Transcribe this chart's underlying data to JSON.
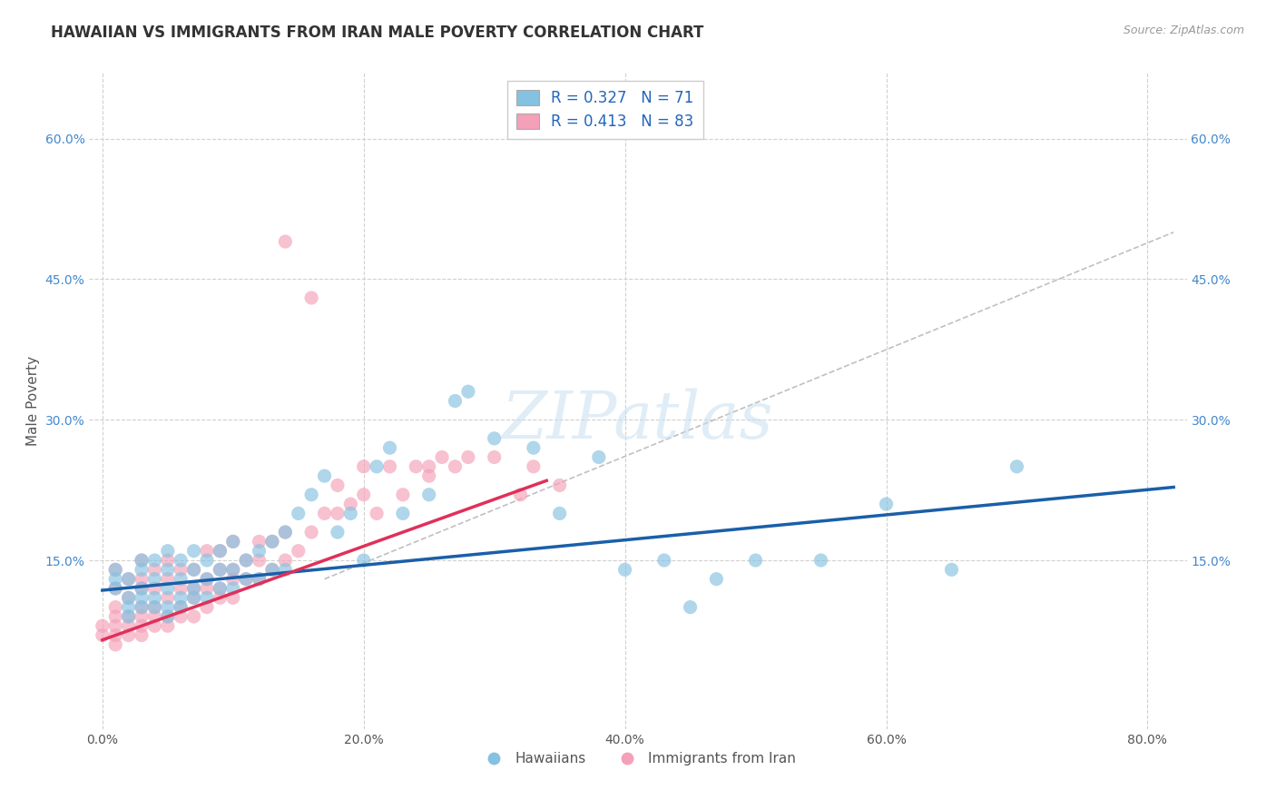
{
  "title": "HAWAIIAN VS IMMIGRANTS FROM IRAN MALE POVERTY CORRELATION CHART",
  "source": "Source: ZipAtlas.com",
  "ylabel_label": "Male Poverty",
  "x_tick_labels": [
    "0.0%",
    "20.0%",
    "40.0%",
    "60.0%",
    "80.0%"
  ],
  "x_tick_values": [
    0.0,
    0.2,
    0.4,
    0.6,
    0.8
  ],
  "y_tick_labels": [
    "15.0%",
    "30.0%",
    "45.0%",
    "60.0%"
  ],
  "y_tick_values": [
    0.15,
    0.3,
    0.45,
    0.6
  ],
  "xlim": [
    -0.01,
    0.83
  ],
  "ylim": [
    -0.03,
    0.67
  ],
  "hawaiian_color": "#85c1e0",
  "iran_color": "#f4a0b8",
  "hawaiian_R": 0.327,
  "hawaiian_N": 71,
  "iran_R": 0.413,
  "iran_N": 83,
  "legend_label_1": "Hawaiians",
  "legend_label_2": "Immigrants from Iran",
  "watermark": "ZIPatlas",
  "background_color": "#ffffff",
  "grid_color": "#d0d0d0",
  "hawaiian_line_color": "#1a5fa8",
  "iran_line_color": "#e0305a",
  "diag_line_color": "#c0c0c0",
  "hawaiian_line_x": [
    0.0,
    0.82
  ],
  "hawaiian_line_y": [
    0.118,
    0.228
  ],
  "iran_line_x": [
    0.0,
    0.34
  ],
  "iran_line_y": [
    0.065,
    0.235
  ],
  "diag_line_x": [
    0.17,
    0.82
  ],
  "diag_line_y": [
    0.13,
    0.5
  ],
  "hawaiian_scatter_x": [
    0.01,
    0.01,
    0.01,
    0.02,
    0.02,
    0.02,
    0.02,
    0.03,
    0.03,
    0.03,
    0.03,
    0.03,
    0.04,
    0.04,
    0.04,
    0.04,
    0.05,
    0.05,
    0.05,
    0.05,
    0.05,
    0.06,
    0.06,
    0.06,
    0.06,
    0.07,
    0.07,
    0.07,
    0.07,
    0.08,
    0.08,
    0.08,
    0.09,
    0.09,
    0.09,
    0.1,
    0.1,
    0.1,
    0.11,
    0.11,
    0.12,
    0.12,
    0.13,
    0.13,
    0.14,
    0.14,
    0.15,
    0.16,
    0.17,
    0.18,
    0.19,
    0.2,
    0.21,
    0.22,
    0.23,
    0.25,
    0.27,
    0.28,
    0.3,
    0.33,
    0.35,
    0.38,
    0.4,
    0.43,
    0.45,
    0.47,
    0.5,
    0.55,
    0.6,
    0.65,
    0.7
  ],
  "hawaiian_scatter_y": [
    0.12,
    0.13,
    0.14,
    0.09,
    0.1,
    0.11,
    0.13,
    0.1,
    0.11,
    0.12,
    0.14,
    0.15,
    0.1,
    0.11,
    0.13,
    0.15,
    0.09,
    0.1,
    0.12,
    0.14,
    0.16,
    0.1,
    0.11,
    0.13,
    0.15,
    0.11,
    0.12,
    0.14,
    0.16,
    0.11,
    0.13,
    0.15,
    0.12,
    0.14,
    0.16,
    0.12,
    0.14,
    0.17,
    0.13,
    0.15,
    0.13,
    0.16,
    0.14,
    0.17,
    0.14,
    0.18,
    0.2,
    0.22,
    0.24,
    0.18,
    0.2,
    0.15,
    0.25,
    0.27,
    0.2,
    0.22,
    0.32,
    0.33,
    0.28,
    0.27,
    0.2,
    0.26,
    0.14,
    0.15,
    0.1,
    0.13,
    0.15,
    0.15,
    0.21,
    0.14,
    0.25
  ],
  "iran_scatter_x": [
    0.0,
    0.0,
    0.01,
    0.01,
    0.01,
    0.01,
    0.01,
    0.01,
    0.01,
    0.02,
    0.02,
    0.02,
    0.02,
    0.02,
    0.03,
    0.03,
    0.03,
    0.03,
    0.03,
    0.03,
    0.03,
    0.04,
    0.04,
    0.04,
    0.04,
    0.04,
    0.05,
    0.05,
    0.05,
    0.05,
    0.05,
    0.06,
    0.06,
    0.06,
    0.06,
    0.07,
    0.07,
    0.07,
    0.07,
    0.08,
    0.08,
    0.08,
    0.08,
    0.09,
    0.09,
    0.09,
    0.09,
    0.1,
    0.1,
    0.1,
    0.1,
    0.11,
    0.11,
    0.12,
    0.12,
    0.12,
    0.13,
    0.13,
    0.14,
    0.14,
    0.15,
    0.16,
    0.17,
    0.18,
    0.18,
    0.19,
    0.2,
    0.2,
    0.21,
    0.22,
    0.23,
    0.24,
    0.25,
    0.26,
    0.27,
    0.28,
    0.3,
    0.32,
    0.33,
    0.35,
    0.25,
    0.14,
    0.16
  ],
  "iran_scatter_y": [
    0.07,
    0.08,
    0.06,
    0.07,
    0.08,
    0.09,
    0.1,
    0.12,
    0.14,
    0.07,
    0.08,
    0.09,
    0.11,
    0.13,
    0.07,
    0.08,
    0.09,
    0.1,
    0.12,
    0.13,
    0.15,
    0.08,
    0.09,
    0.1,
    0.12,
    0.14,
    0.08,
    0.09,
    0.11,
    0.13,
    0.15,
    0.09,
    0.1,
    0.12,
    0.14,
    0.09,
    0.11,
    0.12,
    0.14,
    0.1,
    0.12,
    0.13,
    0.16,
    0.11,
    0.12,
    0.14,
    0.16,
    0.11,
    0.13,
    0.14,
    0.17,
    0.13,
    0.15,
    0.13,
    0.15,
    0.17,
    0.14,
    0.17,
    0.15,
    0.18,
    0.16,
    0.18,
    0.2,
    0.2,
    0.23,
    0.21,
    0.22,
    0.25,
    0.2,
    0.25,
    0.22,
    0.25,
    0.24,
    0.26,
    0.25,
    0.26,
    0.26,
    0.22,
    0.25,
    0.23,
    0.25,
    0.49,
    0.43
  ]
}
